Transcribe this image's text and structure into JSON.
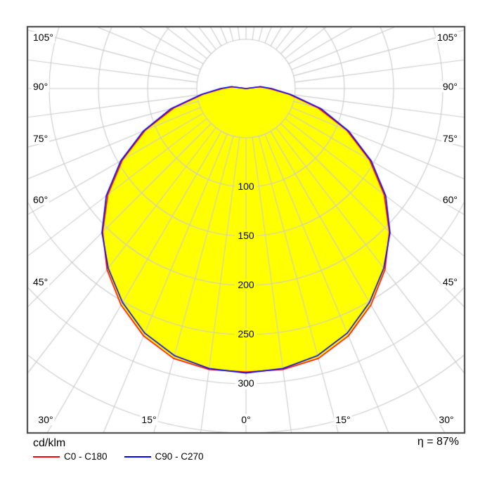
{
  "chart_data": {
    "type": "polar",
    "subtype": "photometric-light-distribution-curve",
    "unit": "cd/klm",
    "efficiency": "η = 87%",
    "angle_axis": {
      "left_labels": [
        "105°",
        "90°",
        "75°",
        "60°",
        "45°"
      ],
      "left_angles": [
        105,
        90,
        75,
        60,
        45
      ],
      "bottom_labels": [
        "30°",
        "15°",
        "0°",
        "15°",
        "30°"
      ],
      "bottom_angles": [
        30,
        15,
        0,
        -15,
        -30
      ],
      "right_labels": [
        "105°",
        "90°",
        "75°",
        "60°",
        "45°"
      ],
      "right_angles": [
        105,
        90,
        75,
        60,
        45
      ],
      "grid_step_deg": 7.5,
      "label_step_deg": 15
    },
    "radial_axis": {
      "ticks": [
        100,
        150,
        200,
        250,
        300
      ],
      "grid_circles": [
        50,
        100,
        150,
        200,
        250,
        300,
        350
      ],
      "max": 350,
      "step": 50
    },
    "gamma_deg": [
      -105,
      -97.5,
      -90,
      -82.5,
      -75,
      -67.5,
      -60,
      -52.5,
      -45,
      -37.5,
      -30,
      -22.5,
      -15,
      -7.5,
      0,
      7.5,
      15,
      22.5,
      30,
      37.5,
      45,
      52.5,
      60,
      67.5,
      75,
      82.5,
      90,
      97.5,
      105
    ],
    "series": [
      {
        "name": "C0 - C180",
        "color": "#ff0000",
        "values": [
          0,
          14,
          24,
          44,
          76,
          111,
          145,
          177,
          206,
          232,
          254,
          272,
          284,
          288,
          288,
          288,
          284,
          272,
          254,
          232,
          206,
          177,
          145,
          111,
          76,
          44,
          24,
          14,
          0
        ]
      },
      {
        "name": "C90 - C270",
        "color": "#0000ff",
        "values": [
          0,
          15,
          26,
          46,
          79,
          113,
          147,
          179,
          207,
          230,
          251,
          269,
          281,
          287,
          289,
          287,
          281,
          269,
          251,
          230,
          207,
          179,
          147,
          113,
          79,
          46,
          26,
          15,
          0
        ]
      }
    ],
    "fill_color": "#ffff00",
    "grid_color": "#cdcdcd",
    "frame_color": "#3d3d3d",
    "background": "#ffffff"
  },
  "legend": {
    "unit_label": "cd/klm",
    "items": [
      {
        "label": "C0 - C180",
        "color": "#ff0000"
      },
      {
        "label": "C90 - C270",
        "color": "#0000ff"
      }
    ]
  },
  "footer": {
    "efficiency_text": "η = 87%"
  }
}
